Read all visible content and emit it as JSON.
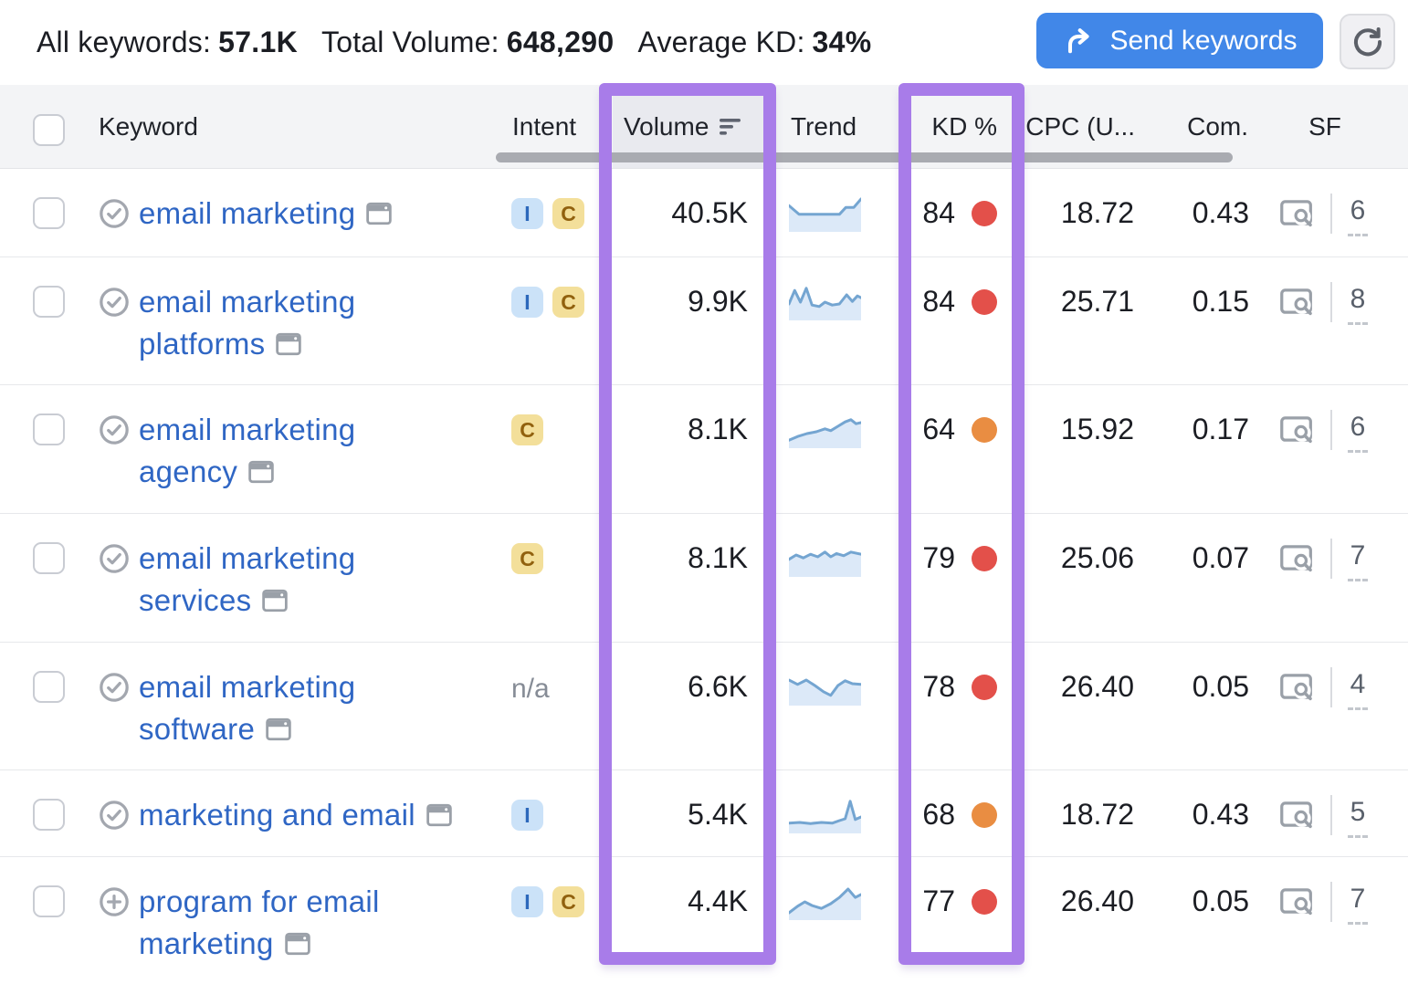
{
  "toolbar": {
    "stats": [
      {
        "label": "All keywords:",
        "value": "57.1K"
      },
      {
        "label": "Total Volume:",
        "value": "648,290"
      },
      {
        "label": "Average KD:",
        "value": "34%"
      }
    ],
    "send_button_label": "Send keywords"
  },
  "table": {
    "columns": {
      "keyword": "Keyword",
      "intent": "Intent",
      "volume": "Volume",
      "trend": "Trend",
      "kd": "KD %",
      "cpc": "CPC (U...",
      "com": "Com.",
      "sf": "SF"
    },
    "rows": [
      {
        "keyword_lines": [
          "email marketing"
        ],
        "status_icon": "check-circle",
        "intents": [
          "I",
          "C"
        ],
        "volume": "40.5K",
        "kd": "84",
        "kd_level": "red",
        "cpc": "18.72",
        "com": "0.43",
        "sf": "6",
        "trend": [
          [
            0,
            0.28
          ],
          [
            0.14,
            0.52
          ],
          [
            0.7,
            0.52
          ],
          [
            0.79,
            0.33
          ],
          [
            0.9,
            0.33
          ],
          [
            1,
            0.1
          ]
        ]
      },
      {
        "keyword_lines": [
          "email marketing",
          "platforms"
        ],
        "status_icon": "check-circle",
        "intents": [
          "I",
          "C"
        ],
        "volume": "9.9K",
        "kd": "84",
        "kd_level": "red",
        "cpc": "25.71",
        "com": "0.15",
        "sf": "8",
        "trend": [
          [
            0,
            0.55
          ],
          [
            0.08,
            0.18
          ],
          [
            0.16,
            0.5
          ],
          [
            0.24,
            0.12
          ],
          [
            0.32,
            0.58
          ],
          [
            0.42,
            0.62
          ],
          [
            0.5,
            0.5
          ],
          [
            0.6,
            0.58
          ],
          [
            0.7,
            0.55
          ],
          [
            0.8,
            0.3
          ],
          [
            0.88,
            0.48
          ],
          [
            0.95,
            0.33
          ],
          [
            1,
            0.38
          ]
        ]
      },
      {
        "keyword_lines": [
          "email marketing",
          "agency"
        ],
        "status_icon": "check-circle",
        "intents": [
          "C"
        ],
        "volume": "8.1K",
        "kd": "64",
        "kd_level": "orange",
        "cpc": "15.92",
        "com": "0.17",
        "sf": "6",
        "trend": [
          [
            0,
            0.78
          ],
          [
            0.12,
            0.68
          ],
          [
            0.25,
            0.6
          ],
          [
            0.38,
            0.55
          ],
          [
            0.5,
            0.47
          ],
          [
            0.58,
            0.52
          ],
          [
            0.68,
            0.4
          ],
          [
            0.78,
            0.28
          ],
          [
            0.86,
            0.22
          ],
          [
            0.93,
            0.33
          ],
          [
            1,
            0.3
          ]
        ]
      },
      {
        "keyword_lines": [
          "email marketing",
          "services"
        ],
        "status_icon": "check-circle",
        "intents": [
          "C"
        ],
        "volume": "8.1K",
        "kd": "79",
        "kd_level": "red",
        "cpc": "25.06",
        "com": "0.07",
        "sf": "7",
        "trend": [
          [
            0,
            0.52
          ],
          [
            0.1,
            0.4
          ],
          [
            0.2,
            0.48
          ],
          [
            0.3,
            0.38
          ],
          [
            0.4,
            0.45
          ],
          [
            0.5,
            0.32
          ],
          [
            0.58,
            0.45
          ],
          [
            0.66,
            0.36
          ],
          [
            0.76,
            0.42
          ],
          [
            0.86,
            0.32
          ],
          [
            1,
            0.38
          ]
        ]
      },
      {
        "keyword_lines": [
          "email marketing",
          "software"
        ],
        "status_icon": "check-circle",
        "intents": [],
        "intent_text": "n/a",
        "volume": "6.6K",
        "kd": "78",
        "kd_level": "red",
        "cpc": "26.40",
        "com": "0.05",
        "sf": "4",
        "trend": [
          [
            0,
            0.3
          ],
          [
            0.12,
            0.42
          ],
          [
            0.24,
            0.3
          ],
          [
            0.36,
            0.45
          ],
          [
            0.48,
            0.62
          ],
          [
            0.58,
            0.72
          ],
          [
            0.68,
            0.45
          ],
          [
            0.78,
            0.32
          ],
          [
            0.88,
            0.4
          ],
          [
            1,
            0.42
          ]
        ]
      },
      {
        "keyword_lines": [
          "marketing and email"
        ],
        "status_icon": "check-circle",
        "intents": [
          "I"
        ],
        "volume": "5.4K",
        "kd": "68",
        "kd_level": "orange",
        "cpc": "18.72",
        "com": "0.43",
        "sf": "5",
        "trend": [
          [
            0,
            0.72
          ],
          [
            0.15,
            0.7
          ],
          [
            0.3,
            0.73
          ],
          [
            0.45,
            0.7
          ],
          [
            0.6,
            0.72
          ],
          [
            0.7,
            0.65
          ],
          [
            0.78,
            0.6
          ],
          [
            0.85,
            0.12
          ],
          [
            0.92,
            0.62
          ],
          [
            1,
            0.55
          ]
        ]
      },
      {
        "keyword_lines": [
          "program for email",
          "marketing"
        ],
        "status_icon": "plus-circle",
        "intents": [
          "I",
          "C"
        ],
        "volume": "4.4K",
        "kd": "77",
        "kd_level": "red",
        "cpc": "26.40",
        "com": "0.05",
        "sf": "7",
        "trend": [
          [
            0,
            0.8
          ],
          [
            0.12,
            0.62
          ],
          [
            0.22,
            0.5
          ],
          [
            0.32,
            0.6
          ],
          [
            0.45,
            0.68
          ],
          [
            0.58,
            0.55
          ],
          [
            0.7,
            0.38
          ],
          [
            0.82,
            0.15
          ],
          [
            0.92,
            0.38
          ],
          [
            1,
            0.3
          ]
        ]
      }
    ],
    "row_layout": {
      "tops": [
        185,
        281,
        421,
        562,
        703,
        843,
        938
      ],
      "heights": [
        96,
        140,
        141,
        141,
        140,
        95,
        140
      ]
    }
  },
  "annotations": {
    "highlighted_columns": [
      "volume",
      "kd"
    ],
    "highlight_color": "#a87ce9"
  },
  "colors": {
    "button_blue": "#4187e8",
    "link_blue": "#2f66c4",
    "kd_red": "#e3504a",
    "kd_orange": "#e98d42",
    "sparkline_line": "#74a5d1",
    "sparkline_fill": "#dce9f8"
  }
}
